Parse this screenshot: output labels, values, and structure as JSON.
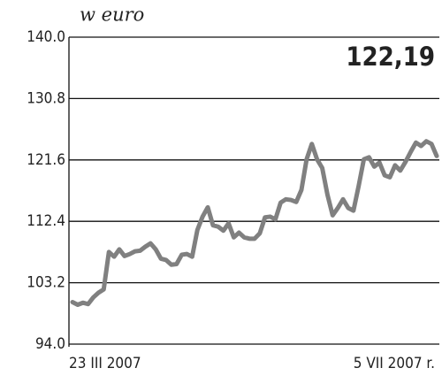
{
  "chart_data": {
    "type": "line",
    "title": "w euro",
    "annotation": "122,19",
    "categories": [
      "23 III 2007",
      null,
      null,
      null,
      null,
      null,
      null,
      null,
      null,
      null,
      null,
      null,
      null,
      null,
      null,
      null,
      null,
      null,
      null,
      null,
      null,
      null,
      null,
      null,
      null,
      null,
      null,
      null,
      null,
      null,
      null,
      null,
      null,
      null,
      null,
      null,
      null,
      null,
      null,
      null,
      null,
      null,
      null,
      null,
      null,
      null,
      null,
      null,
      null,
      null,
      null,
      null,
      null,
      null,
      null,
      null,
      null,
      null,
      null,
      null,
      null,
      null,
      null,
      null,
      null,
      null,
      null,
      null,
      null,
      null,
      "5 VII 2007 r."
    ],
    "series": [
      {
        "color": "#808080",
        "values": [
          100.3,
          99.9,
          100.2,
          100.0,
          101.0,
          101.7,
          102.2,
          107.8,
          107.1,
          108.2,
          107.2,
          107.5,
          107.9,
          108.0,
          108.6,
          109.1,
          108.2,
          106.8,
          106.6,
          105.9,
          106.0,
          107.4,
          107.5,
          107.1,
          111.1,
          113.1,
          114.5,
          111.8,
          111.6,
          111.0,
          112.1,
          110.0,
          110.7,
          110.0,
          109.8,
          109.8,
          110.6,
          113.0,
          113.1,
          112.7,
          115.2,
          115.7,
          115.6,
          115.3,
          117.1,
          121.7,
          124.0,
          121.7,
          120.4,
          116.4,
          113.3,
          114.4,
          115.7,
          114.4,
          114.0,
          117.7,
          121.7,
          122.0,
          120.6,
          121.2,
          119.3,
          119.0,
          120.8,
          120.0,
          121.3,
          122.8,
          124.2,
          123.7,
          124.4,
          124.0,
          122.19
        ]
      }
    ],
    "ylim": [
      94,
      140
    ],
    "yticks": [
      {
        "value": 94,
        "label": "94.0"
      },
      103.2,
      112.4,
      121.6,
      130.8,
      {
        "value": 140,
        "label": "140.0"
      }
    ],
    "grid": true
  }
}
